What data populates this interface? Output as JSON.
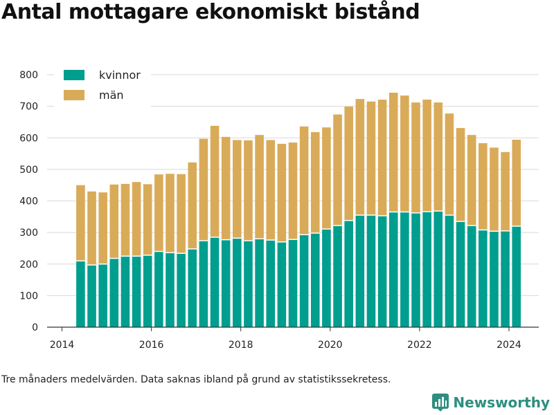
{
  "title": "Antal mottagare ekonomiskt bistånd",
  "note": "Tre månaders medelvärden. Data saknas ibland på grund av statistikssekretess.",
  "brand": {
    "name": "Newsworthy",
    "icon": "newsworthy-logo-icon"
  },
  "colors": {
    "kvinnor": "#009e8e",
    "män": "#d9ab59",
    "grid": "#d9d9d9",
    "axis": "#333333"
  },
  "chart_data": {
    "type": "bar",
    "stacked": true,
    "x": [
      "2014-06",
      "2014-09",
      "2014-12",
      "2015-03",
      "2015-06",
      "2015-09",
      "2015-12",
      "2016-03",
      "2016-06",
      "2016-09",
      "2016-12",
      "2017-03",
      "2017-06",
      "2017-09",
      "2017-12",
      "2018-03",
      "2018-06",
      "2018-09",
      "2018-12",
      "2019-03",
      "2019-06",
      "2019-09",
      "2019-12",
      "2020-03",
      "2020-06",
      "2020-09",
      "2020-12",
      "2021-03",
      "2021-06",
      "2021-09",
      "2021-12",
      "2022-03",
      "2022-06",
      "2022-09",
      "2022-12",
      "2023-03",
      "2023-06",
      "2023-09",
      "2023-12",
      "2024-03"
    ],
    "series": [
      {
        "name": "kvinnor",
        "values": [
          210,
          197,
          200,
          218,
          225,
          225,
          228,
          240,
          236,
          234,
          248,
          274,
          285,
          277,
          282,
          274,
          280,
          276,
          270,
          278,
          293,
          298,
          311,
          322,
          338,
          355,
          355,
          353,
          365,
          365,
          362,
          366,
          368,
          355,
          335,
          322,
          308,
          304,
          305,
          320
        ]
      },
      {
        "name": "män",
        "values": [
          240,
          233,
          227,
          234,
          229,
          235,
          225,
          244,
          250,
          251,
          274,
          323,
          353,
          326,
          311,
          318,
          329,
          317,
          311,
          307,
          343,
          320,
          322,
          352,
          361,
          368,
          360,
          368,
          378,
          369,
          350,
          355,
          344,
          322,
          296,
          287,
          275,
          265,
          250,
          274
        ]
      }
    ],
    "xticks": [
      "2014",
      "2016",
      "2018",
      "2020",
      "2022",
      "2024"
    ],
    "yticks": [
      0,
      100,
      200,
      300,
      400,
      500,
      600,
      700,
      800
    ],
    "ylim": [
      0,
      800
    ],
    "xlim": [
      "2013-09",
      "2024-09"
    ],
    "grid": true,
    "legend": [
      "kvinnor",
      "män"
    ],
    "legend_position": "top-left"
  }
}
